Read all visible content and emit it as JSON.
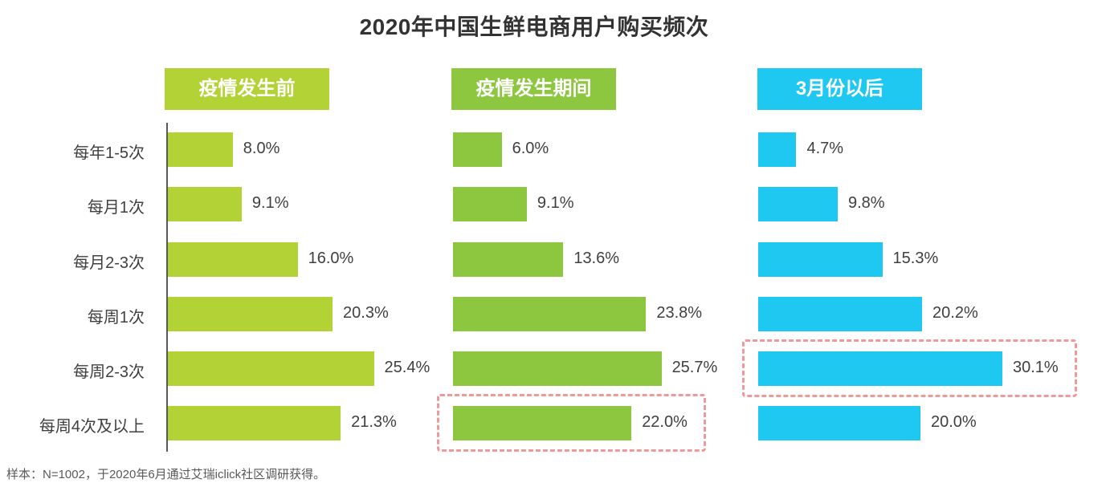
{
  "chart_data": {
    "type": "bar",
    "orientation": "horizontal",
    "title": "2020年中国生鲜电商用户购买频次",
    "categories": [
      "每年1-5次",
      "每月1次",
      "每月2-3次",
      "每周1次",
      "每周2-3次",
      "每周4次及以上"
    ],
    "series": [
      {
        "name": "疫情发生前",
        "color": "#b2d235",
        "values": [
          8.0,
          9.1,
          16.0,
          20.3,
          25.4,
          21.3
        ],
        "labels": [
          "8.0%",
          "9.1%",
          "16.0%",
          "20.3%",
          "25.4%",
          "21.3%"
        ],
        "highlight_index": null
      },
      {
        "name": "疫情发生期间",
        "color": "#8dc63f",
        "values": [
          6.0,
          9.1,
          13.6,
          23.8,
          25.7,
          22.0
        ],
        "labels": [
          "6.0%",
          "9.1%",
          "13.6%",
          "23.8%",
          "25.7%",
          "22.0%"
        ],
        "highlight_index": 5
      },
      {
        "name": "3月份以后",
        "color": "#1ec8f0",
        "values": [
          4.7,
          9.8,
          15.3,
          20.2,
          30.1,
          20.0
        ],
        "labels": [
          "4.7%",
          "9.8%",
          "15.3%",
          "20.2%",
          "30.1%",
          "20.0%"
        ],
        "highlight_index": 4
      }
    ],
    "unit": "%",
    "footnote": "样本：N=1002，于2020年6月通过艾瑞iclick社区调研获得。"
  }
}
